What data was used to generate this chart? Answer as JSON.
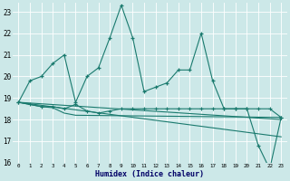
{
  "xlabel": "Humidex (Indice chaleur)",
  "line1": {
    "x": [
      0,
      1,
      2,
      3,
      4,
      5,
      6,
      7,
      8,
      9,
      10,
      11,
      12,
      13,
      14,
      15,
      16,
      17,
      18,
      19,
      20,
      21,
      22,
      23
    ],
    "y": [
      18.8,
      19.8,
      20.0,
      20.6,
      21.0,
      18.8,
      20.0,
      20.4,
      21.8,
      23.3,
      21.8,
      19.3,
      19.5,
      19.7,
      20.3,
      20.3,
      22.0,
      19.8,
      18.5,
      18.5,
      18.5,
      16.8,
      15.7,
      18.1
    ]
  },
  "line2": {
    "x": [
      0,
      1,
      2,
      3,
      4,
      5,
      6,
      7,
      8,
      9,
      10,
      11,
      12,
      13,
      14,
      15,
      16,
      17,
      18,
      19,
      20,
      21,
      22,
      23
    ],
    "y": [
      18.8,
      18.7,
      18.6,
      18.6,
      18.5,
      18.7,
      18.4,
      18.3,
      18.4,
      18.5,
      18.5,
      18.5,
      18.5,
      18.5,
      18.5,
      18.5,
      18.5,
      18.5,
      18.5,
      18.5,
      18.5,
      18.5,
      18.5,
      18.1
    ]
  },
  "line3": {
    "x": [
      0,
      2,
      3,
      4,
      5,
      23
    ],
    "y": [
      18.8,
      18.6,
      18.55,
      18.3,
      18.2,
      18.1
    ]
  },
  "line4": {
    "x": [
      0,
      23
    ],
    "y": [
      18.8,
      18.0
    ]
  },
  "line5": {
    "x": [
      0,
      23
    ],
    "y": [
      18.8,
      17.2
    ]
  },
  "color": "#1a7a6e",
  "bg_color": "#cce8e8",
  "grid_color": "#b8d8d8",
  "xlim": [
    -0.5,
    23.5
  ],
  "ylim": [
    16,
    23.4
  ],
  "yticks": [
    16,
    17,
    18,
    19,
    20,
    21,
    22,
    23
  ],
  "xticks": [
    0,
    1,
    2,
    3,
    4,
    5,
    6,
    7,
    8,
    9,
    10,
    11,
    12,
    13,
    14,
    15,
    16,
    17,
    18,
    19,
    20,
    21,
    22,
    23
  ]
}
